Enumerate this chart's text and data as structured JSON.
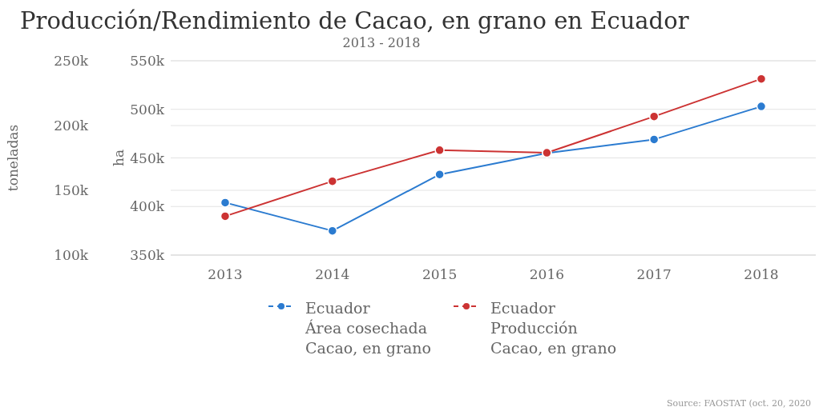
{
  "chart_data": {
    "type": "line",
    "title": "Producción/Rendimiento de Cacao, en grano en Ecuador",
    "subtitle": "2013 - 2018",
    "ylabel": "ha",
    "y2label": "toneladas",
    "categories": [
      "2013",
      "2014",
      "2015",
      "2016",
      "2017",
      "2018"
    ],
    "series": [
      {
        "name": "Ecuador\nÁrea cosechada\nCacao, en grano",
        "color": "#2b7bd0",
        "values": [
          404000,
          375000,
          433000,
          455000,
          469000,
          503000
        ]
      },
      {
        "name": "Ecuador\nProducción\nCacao, en grano",
        "color": "#cc3333",
        "axis": "y2",
        "values": [
          130000,
          157000,
          181000,
          179000,
          207000,
          236000
        ]
      }
    ],
    "ylim": [
      350000,
      550000
    ],
    "yticks": [
      {
        "value": 350000,
        "label": "350k"
      },
      {
        "value": 400000,
        "label": "400k"
      },
      {
        "value": 450000,
        "label": "450k"
      },
      {
        "value": 500000,
        "label": "500k"
      },
      {
        "value": 550000,
        "label": "550k"
      }
    ],
    "y2lim": [
      100000,
      250000
    ],
    "y2ticks": [
      {
        "value": 100000,
        "label": "100k"
      },
      {
        "value": 150000,
        "label": "150k"
      },
      {
        "value": 200000,
        "label": "200k"
      },
      {
        "value": 250000,
        "label": "250k"
      }
    ],
    "grid": "y",
    "legend": "bottom",
    "marker": "circle",
    "line_style": "solid",
    "annotations": [
      "Source: FAOSTAT (oct. 20, 2020"
    ]
  }
}
